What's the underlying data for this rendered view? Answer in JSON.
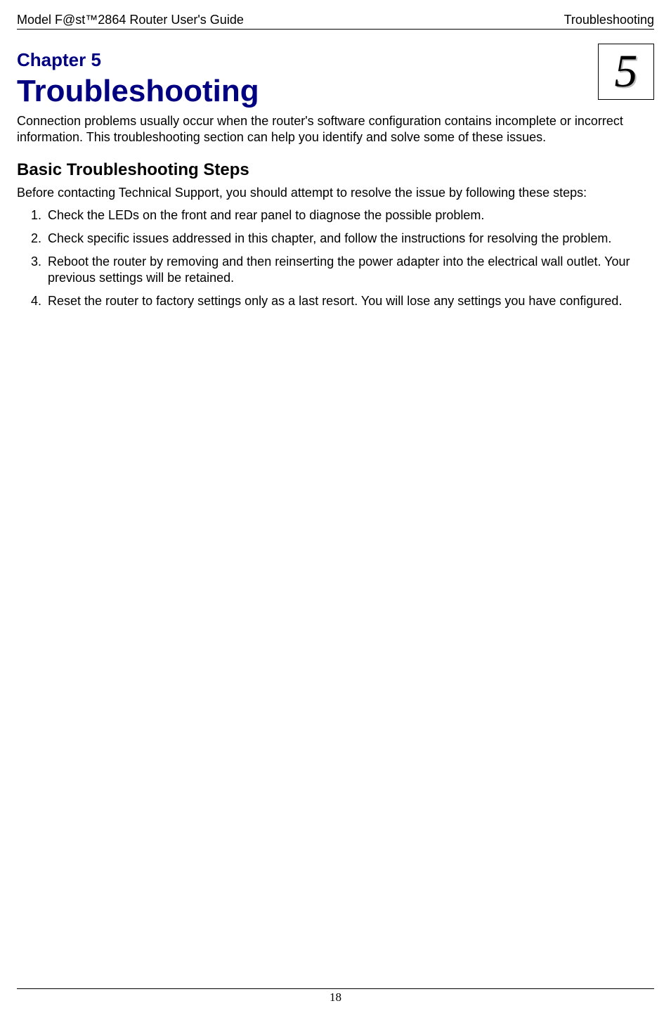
{
  "header": {
    "left": "Model F@st™2864 Router User's Guide",
    "right": "Troubleshooting"
  },
  "chapter": {
    "label": "Chapter 5",
    "title": "Troubleshooting",
    "badge": "5",
    "title_color": "#000080"
  },
  "intro": "Connection problems usually occur when the router's software configuration contains incomplete or incorrect information. This troubleshooting section can help you identify and solve some of these issues.",
  "section": {
    "heading": "Basic Troubleshooting Steps",
    "intro": "Before contacting Technical Support, you should attempt to resolve the issue by following these steps:"
  },
  "steps": [
    "Check the LEDs on the front and rear panel to diagnose the possible problem.",
    "Check specific issues addressed in this chapter, and follow the instructions for resolving the problem.",
    "Reboot the router by removing and then reinserting the power adapter into the electrical wall outlet. Your previous settings will be retained.",
    "Reset the router to factory settings only as a last resort. You will lose any settings you have configured."
  ],
  "footer": {
    "page_number": "18"
  },
  "colors": {
    "text": "#000000",
    "heading": "#000080",
    "rule": "#000000",
    "background": "#ffffff",
    "badge_shadow": "#bbbbbb"
  },
  "fonts": {
    "body": "Arial",
    "heading": "Comic Sans MS",
    "badge": "Georgia Italic",
    "page_number": "Times New Roman"
  }
}
